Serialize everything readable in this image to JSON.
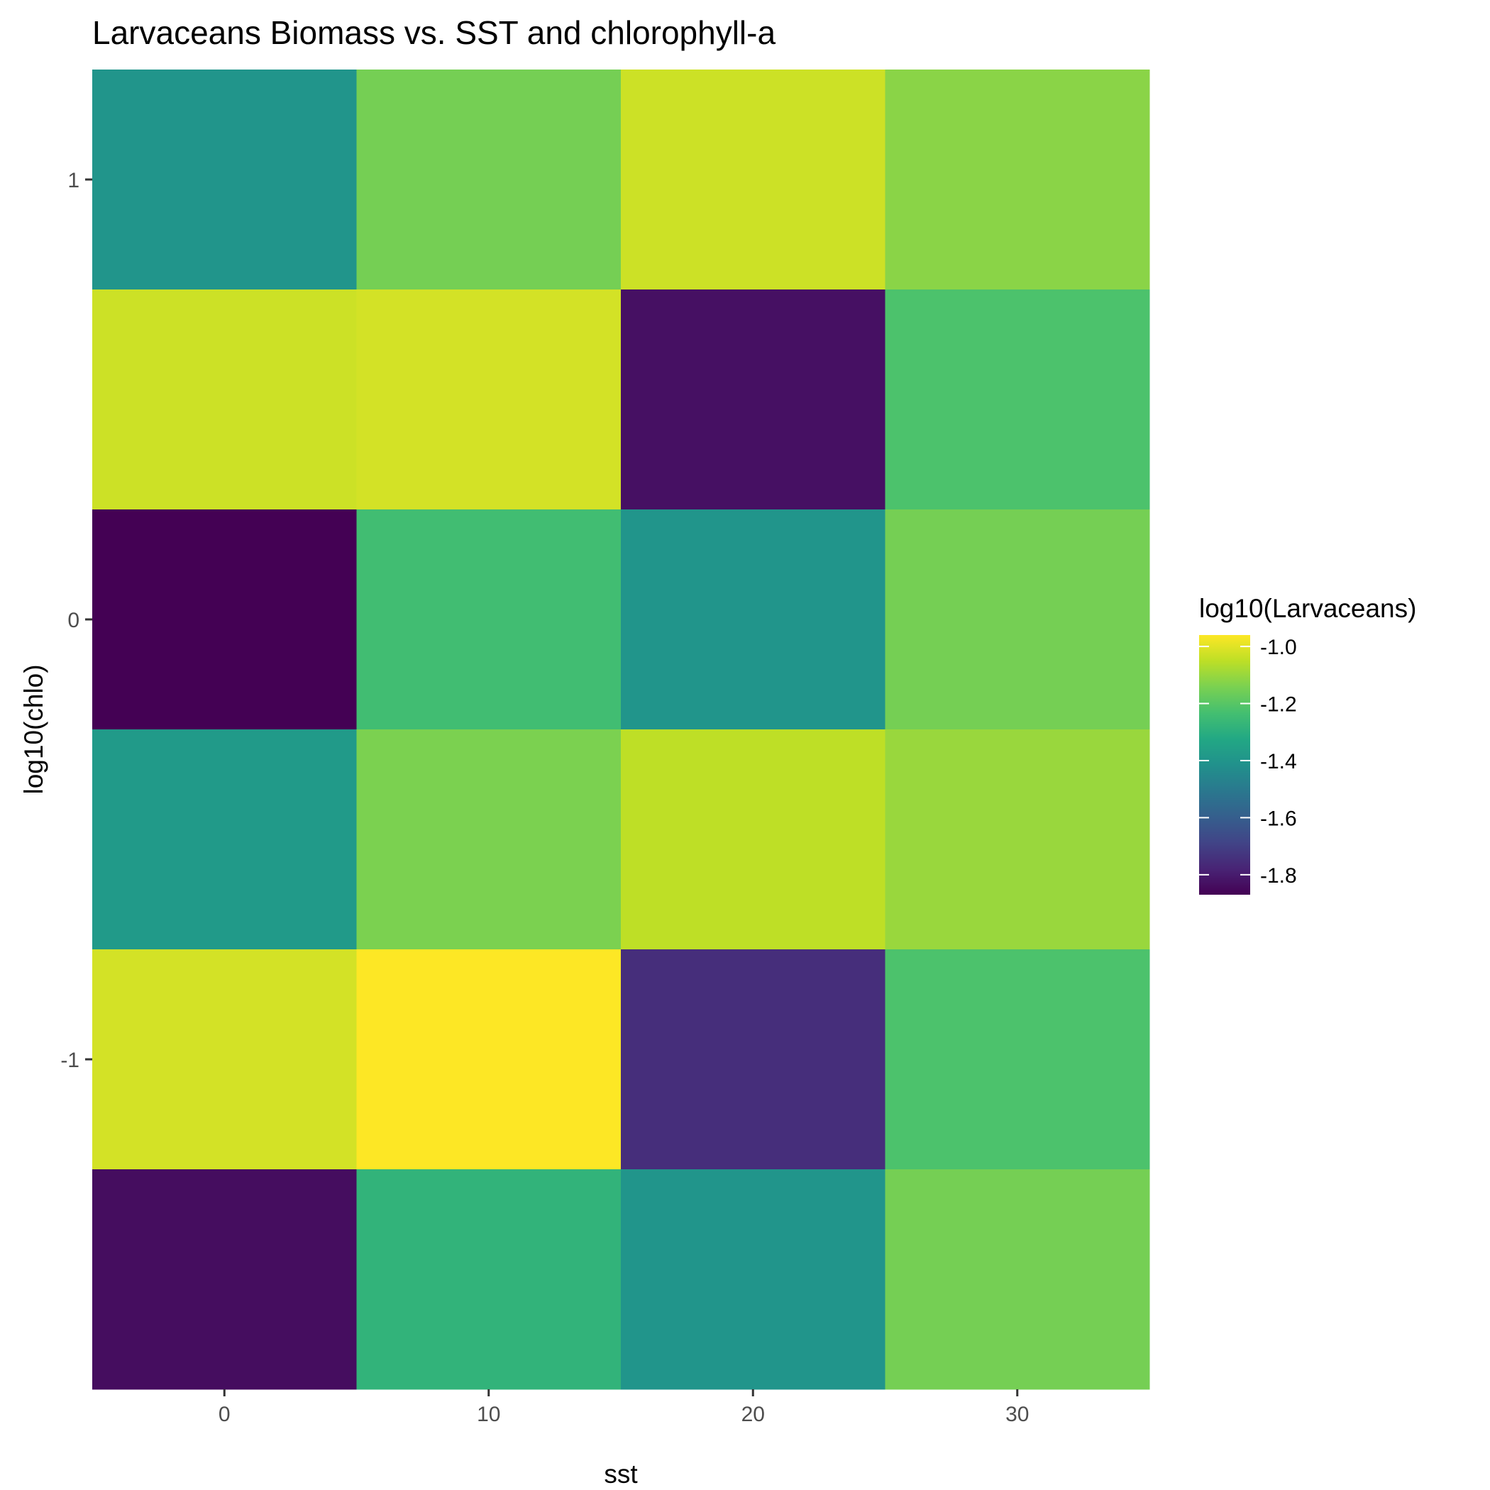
{
  "chart_data": {
    "type": "heatmap",
    "title": "Larvaceans Biomass vs. SST and chlorophyll-a",
    "xlabel": "sst",
    "ylabel": "log10(chlo)",
    "x": [
      0,
      10,
      20,
      30
    ],
    "y": [
      1.0,
      0.5,
      0.0,
      -0.5,
      -1.0,
      -1.5
    ],
    "values": [
      [
        -1.4,
        -1.15,
        -1.03,
        -1.12
      ],
      [
        -1.03,
        -1.02,
        -1.83,
        -1.22
      ],
      [
        -1.87,
        -1.24,
        -1.4,
        -1.15
      ],
      [
        -1.38,
        -1.14,
        -1.05,
        -1.1
      ],
      [
        -1.02,
        -0.96,
        -1.75,
        -1.22
      ],
      [
        -1.84,
        -1.28,
        -1.4,
        -1.15
      ]
    ],
    "xlim": [
      -5,
      35
    ],
    "ylim": [
      -1.75,
      1.25
    ],
    "x_ticks": [
      "0",
      "10",
      "20",
      "30"
    ],
    "y_ticks": [
      "1",
      "0",
      "-1"
    ],
    "grid": true,
    "legend": {
      "title": "log10(Larvaceans)",
      "position": "right",
      "labels": [
        "-1.0",
        "-1.2",
        "-1.4",
        "-1.6",
        "-1.8"
      ],
      "values": [
        -1.0,
        -1.2,
        -1.4,
        -1.6,
        -1.8
      ],
      "range": [
        -1.87,
        -0.96
      ]
    },
    "colormap": "viridis",
    "panel_background": "#ebebeb",
    "gridline_color": "#ffffff"
  }
}
